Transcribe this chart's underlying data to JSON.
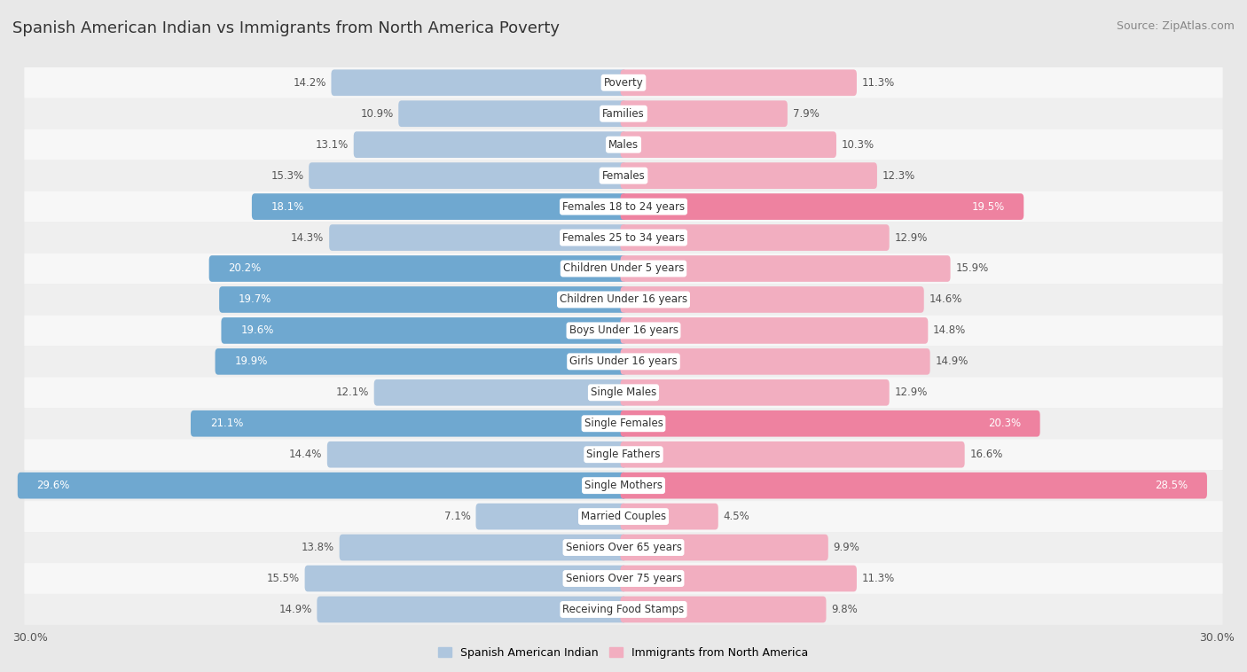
{
  "title": "Spanish American Indian vs Immigrants from North America Poverty",
  "source": "Source: ZipAtlas.com",
  "categories": [
    "Poverty",
    "Families",
    "Males",
    "Females",
    "Females 18 to 24 years",
    "Females 25 to 34 years",
    "Children Under 5 years",
    "Children Under 16 years",
    "Boys Under 16 years",
    "Girls Under 16 years",
    "Single Males",
    "Single Females",
    "Single Fathers",
    "Single Mothers",
    "Married Couples",
    "Seniors Over 65 years",
    "Seniors Over 75 years",
    "Receiving Food Stamps"
  ],
  "left_values": [
    14.2,
    10.9,
    13.1,
    15.3,
    18.1,
    14.3,
    20.2,
    19.7,
    19.6,
    19.9,
    12.1,
    21.1,
    14.4,
    29.6,
    7.1,
    13.8,
    15.5,
    14.9
  ],
  "right_values": [
    11.3,
    7.9,
    10.3,
    12.3,
    19.5,
    12.9,
    15.9,
    14.6,
    14.8,
    14.9,
    12.9,
    20.3,
    16.6,
    28.5,
    4.5,
    9.9,
    11.3,
    9.8
  ],
  "left_color_normal": "#aec6de",
  "left_color_highlight": "#6fa8d0",
  "right_color_normal": "#f2aec0",
  "right_color_highlight": "#ee82a0",
  "highlight_threshold": 17.0,
  "axis_max": 30.0,
  "bg_color": "#e8e8e8",
  "row_color_odd": "#f7f7f7",
  "row_color_even": "#efefef",
  "label_color_dark": "#555555",
  "label_color_white": "#ffffff",
  "legend_left": "Spanish American Indian",
  "legend_right": "Immigrants from North America",
  "left_color_legend": "#aec6de",
  "right_color_legend": "#f2aec0",
  "title_fontsize": 13,
  "source_fontsize": 9,
  "bar_label_fontsize": 8.5,
  "cat_label_fontsize": 8.5,
  "axis_label_fontsize": 9
}
